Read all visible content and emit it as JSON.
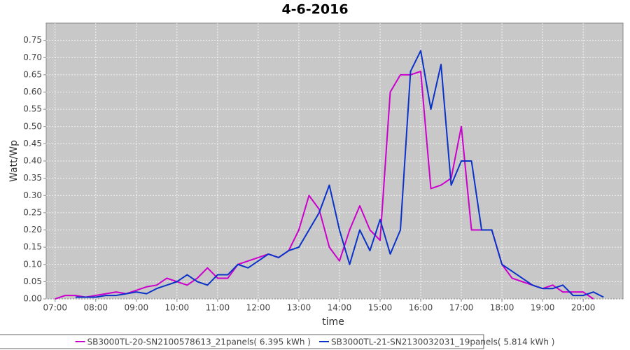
{
  "chart_data": {
    "type": "line",
    "title": "4-6-2016",
    "x_label": "time",
    "y_label": "Watt/Wp",
    "x": [
      7,
      7.25,
      7.5,
      7.75,
      8,
      8.25,
      8.5,
      8.75,
      9,
      9.25,
      9.5,
      9.75,
      10,
      10.25,
      10.5,
      10.75,
      11,
      11.25,
      11.5,
      11.75,
      12,
      12.25,
      12.5,
      12.75,
      13,
      13.25,
      13.5,
      13.75,
      14,
      14.25,
      14.5,
      14.75,
      15,
      15.25,
      15.5,
      15.75,
      16,
      16.25,
      16.5,
      16.75,
      17,
      17.25,
      17.5,
      17.75,
      18,
      18.25,
      18.5,
      18.75,
      19,
      19.25,
      19.5,
      19.75,
      20,
      20.25,
      20.5,
      20.75
    ],
    "series": [
      {
        "name": "SB3000TL-20-SN2100578613_21panels( 6.395 kWh )",
        "color": "#cc00cc",
        "values": [
          0,
          0.01,
          0.01,
          0.005,
          0.01,
          0.015,
          0.02,
          0.015,
          0.025,
          0.035,
          0.04,
          0.06,
          0.05,
          0.04,
          0.06,
          0.09,
          0.06,
          0.06,
          0.1,
          0.11,
          0.12,
          0.13,
          0.12,
          0.14,
          0.2,
          0.3,
          0.26,
          0.15,
          0.11,
          0.2,
          0.27,
          0.2,
          0.17,
          0.6,
          0.65,
          0.65,
          0.66,
          0.32,
          0.33,
          0.35,
          0.5,
          0.2,
          0.2,
          0.2,
          0.1,
          0.06,
          0.05,
          0.04,
          0.03,
          0.04,
          0.02,
          0.02,
          0.02,
          0,
          null,
          null
        ]
      },
      {
        "name": "SB3000TL-21-SN2130032031_19panels( 5.814 kWh )",
        "color": "#0a32c8",
        "values": [
          null,
          null,
          0.005,
          0.005,
          0.005,
          0.01,
          0.01,
          0.015,
          0.02,
          0.015,
          0.03,
          0.04,
          0.05,
          0.07,
          0.05,
          0.04,
          0.07,
          0.07,
          0.1,
          0.09,
          0.11,
          0.13,
          0.12,
          0.14,
          0.15,
          0.2,
          0.25,
          0.33,
          0.2,
          0.1,
          0.2,
          0.14,
          0.23,
          0.13,
          0.2,
          0.66,
          0.72,
          0.55,
          0.68,
          0.33,
          0.4,
          0.4,
          0.2,
          0.2,
          0.1,
          0.08,
          0.06,
          0.04,
          0.03,
          0.03,
          0.04,
          0.01,
          0.01,
          0.02,
          0.005,
          null
        ]
      }
    ],
    "xlim": [
      6.78,
      20.98
    ],
    "xticks": [
      {
        "value": 7,
        "label": "07:00"
      },
      {
        "value": 8,
        "label": "08:00"
      },
      {
        "value": 9,
        "label": "09:00"
      },
      {
        "value": 10,
        "label": "10:00"
      },
      {
        "value": 11,
        "label": "11:00"
      },
      {
        "value": 12,
        "label": "12:00"
      },
      {
        "value": 13,
        "label": "13:00"
      },
      {
        "value": 14,
        "label": "14:00"
      },
      {
        "value": 15,
        "label": "15:00"
      },
      {
        "value": 16,
        "label": "16:00"
      },
      {
        "value": 17,
        "label": "17:00"
      },
      {
        "value": 18,
        "label": "18:00"
      },
      {
        "value": 19,
        "label": "19:00"
      },
      {
        "value": 20,
        "label": "20:00"
      }
    ],
    "ylim": [
      0,
      0.8
    ],
    "yticks": [
      {
        "value": 0,
        "label": "0.00"
      },
      {
        "value": 0.05,
        "label": "0.05"
      },
      {
        "value": 0.1,
        "label": "0.10"
      },
      {
        "value": 0.15,
        "label": "0.15"
      },
      {
        "value": 0.2,
        "label": "0.20"
      },
      {
        "value": 0.25,
        "label": "0.25"
      },
      {
        "value": 0.3,
        "label": "0.30"
      },
      {
        "value": 0.35,
        "label": "0.35"
      },
      {
        "value": 0.4,
        "label": "0.40"
      },
      {
        "value": 0.45,
        "label": "0.45"
      },
      {
        "value": 0.5,
        "label": "0.50"
      },
      {
        "value": 0.55,
        "label": "0.55"
      },
      {
        "value": 0.6,
        "label": "0.60"
      },
      {
        "value": 0.65,
        "label": "0.65"
      },
      {
        "value": 0.7,
        "label": "0.70"
      },
      {
        "value": 0.75,
        "label": "0.75"
      }
    ],
    "grid": true,
    "legend": "bottom"
  }
}
